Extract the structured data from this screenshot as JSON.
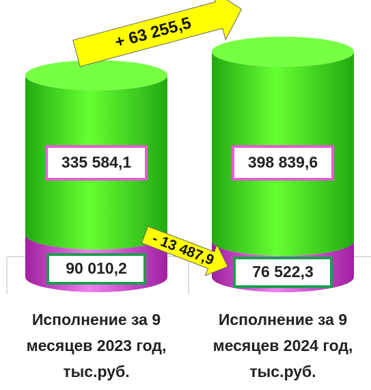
{
  "chart_data": {
    "type": "bar",
    "stacked": true,
    "categories": [
      "Исполнение за 9 месяцев 2023 год, тыс.руб.",
      "Исполнение за 9 месяцев 2024 год, тыс.руб."
    ],
    "series": [
      {
        "name": null,
        "color": "#d040d0",
        "label_border": "#1a9e50",
        "values": [
          90010.2,
          76522.3
        ],
        "value_labels": [
          "90 010,2",
          "76 522,3"
        ]
      },
      {
        "name": null,
        "color": "#44dd22",
        "label_border": "#e060d0",
        "values": [
          335584.1,
          398839.6
        ],
        "value_labels": [
          "335 584,1",
          "398 839,6"
        ]
      }
    ],
    "annotations": [
      {
        "text": "+ 63 255,5",
        "value": 63255.5
      },
      {
        "text": "- 13 487,9",
        "value": -13487.9
      }
    ]
  }
}
